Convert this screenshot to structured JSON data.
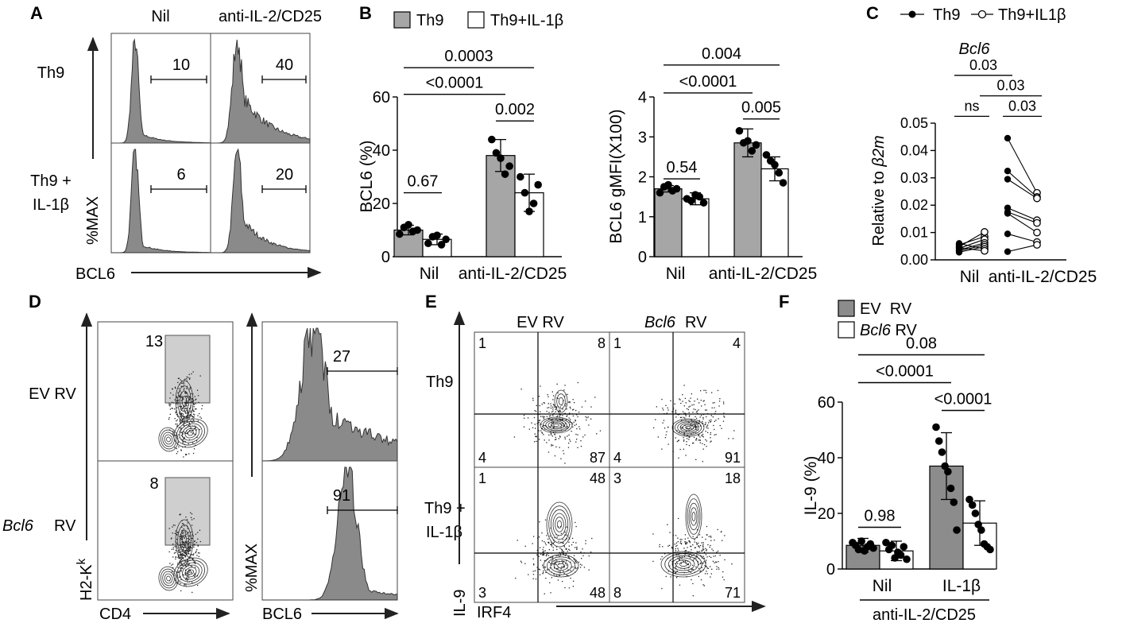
{
  "panel_labels": {
    "a": "A",
    "b": "B",
    "c": "C",
    "d": "D",
    "e": "E",
    "f": "F"
  },
  "panel_a": {
    "col_headers": [
      "Nil",
      "anti-IL-2/CD25"
    ],
    "row_labels": [
      "Th9",
      "Th9 +",
      "IL-1β"
    ],
    "y_label": "%MAX",
    "x_label": "BCL6",
    "gate_values": [
      "10",
      "40",
      "6",
      "20"
    ]
  },
  "legend_b": {
    "items": [
      "Th9",
      "Th9+IL-1β"
    ],
    "colors": [
      "#a6a6a6",
      "#ffffff"
    ]
  },
  "legend_c": {
    "items": [
      "Th9",
      "Th9+IL1β"
    ]
  },
  "title_c": "Bcl6",
  "ylabel_c_prefix": "Relative to ",
  "ylabel_c_gene": "β2m",
  "legend_f": {
    "items": [
      "EV  RV",
      "Bcl6 RV"
    ],
    "item2_gene": "Bcl6",
    "item2_rest": " RV"
  },
  "panel_d": {
    "row_labels": [
      "EV RV",
      "Bcl6",
      "RV"
    ],
    "dot_y_label": "H2-K",
    "dot_y_sup": "k",
    "dot_x_label": "CD4",
    "hist_y_label": "%MAX",
    "hist_x_label": "BCL6",
    "gate_values": [
      "13",
      "8"
    ],
    "hist_values": [
      "27",
      "91"
    ]
  },
  "panel_e": {
    "col_headers": [
      "EV RV",
      "Bcl6",
      "RV"
    ],
    "row_labels": [
      "Th9",
      "Th9 +",
      "IL-1β"
    ],
    "y_label": "IL-9",
    "x_label": "IRF4",
    "quadrants": [
      {
        "ul": "1",
        "ur": "8",
        "ll": "4",
        "lr": "87"
      },
      {
        "ul": "1",
        "ur": "4",
        "ll": "4",
        "lr": "91"
      },
      {
        "ul": "1",
        "ur": "48",
        "ll": "3",
        "lr": "48"
      },
      {
        "ul": "3",
        "ur": "18",
        "ll": "8",
        "lr": "71"
      }
    ]
  },
  "chart_data": [
    {
      "type": "bar",
      "id": "B1",
      "ylabel": "BCL6 (%)",
      "categories": [
        "Nil",
        "anti-IL-2/CD25"
      ],
      "ylim": [
        0,
        60
      ],
      "yticks": [
        "0",
        "20",
        "40",
        "60"
      ],
      "series": [
        {
          "name": "Th9",
          "values": [
            10,
            38
          ],
          "err": [
            1.8,
            6
          ],
          "points": [
            [
              8.5,
              11,
              12,
              9.5,
              10
            ],
            [
              44,
              39,
              37,
              31,
              34
            ]
          ]
        },
        {
          "name": "Th9+IL-1β",
          "values": [
            6.5,
            24
          ],
          "err": [
            2,
            7
          ],
          "points": [
            [
              5,
              7.5,
              8,
              4.5,
              6.5
            ],
            [
              30,
              24,
              17,
              20,
              27
            ]
          ]
        }
      ],
      "annotations": [
        {
          "text": "0.67",
          "from": [
            0,
            0
          ],
          "to": [
            0,
            1
          ],
          "y": 24
        },
        {
          "text": "0.002",
          "from": [
            1,
            0
          ],
          "to": [
            1,
            1
          ],
          "y": 51
        },
        {
          "text": "<0.0001",
          "from": [
            0,
            0
          ],
          "to": [
            1,
            0
          ],
          "y": 61
        },
        {
          "text": "0.0003",
          "from": [
            0,
            0
          ],
          "to": [
            1,
            1
          ],
          "y": 71
        }
      ]
    },
    {
      "type": "bar",
      "id": "B2",
      "ylabel": "BCL6 gMFI(X100)",
      "categories": [
        "Nil",
        "anti-IL-2/CD25"
      ],
      "ylim": [
        0,
        4
      ],
      "yticks": [
        "0",
        "1",
        "2",
        "3",
        "4"
      ],
      "series": [
        {
          "name": "Th9",
          "values": [
            1.7,
            2.85
          ],
          "err": [
            0.08,
            0.35
          ],
          "points": [
            [
              1.6,
              1.75,
              1.8,
              1.65,
              1.7
            ],
            [
              3.15,
              2.85,
              2.9,
              2.65,
              2.8
            ]
          ]
        },
        {
          "name": "Th9+IL-1β",
          "values": [
            1.45,
            2.2
          ],
          "err": [
            0.15,
            0.3
          ],
          "points": [
            [
              1.45,
              1.4,
              1.55,
              1.5,
              1.35
            ],
            [
              2.55,
              2.4,
              2.3,
              2.1,
              1.85
            ]
          ]
        }
      ],
      "annotations": [
        {
          "text": "0.54",
          "from": [
            0,
            0
          ],
          "to": [
            0,
            1
          ],
          "y": 1.95
        },
        {
          "text": "0.005",
          "from": [
            1,
            0
          ],
          "to": [
            1,
            1
          ],
          "y": 3.45
        },
        {
          "text": "<0.0001",
          "from": [
            0,
            0
          ],
          "to": [
            1,
            0
          ],
          "y": 4.1
        },
        {
          "text": "0.004",
          "from": [
            0,
            0
          ],
          "to": [
            1,
            1
          ],
          "y": 4.8
        }
      ]
    },
    {
      "type": "scatter",
      "id": "C",
      "ylabel": "Relative to β2m",
      "categories": [
        "Nil",
        "anti-IL-2/CD25"
      ],
      "ylim": [
        0,
        0.05
      ],
      "yticks": [
        "0.00",
        "0.01",
        "0.02",
        "0.03",
        "0.04",
        "0.05"
      ],
      "pairs": [
        [
          [
            0.0055,
            0.0085
          ],
          [
            0.0048,
            0.0102
          ],
          [
            0.0042,
            0.0075
          ],
          [
            0.0036,
            0.0062
          ],
          [
            0.0032,
            0.0055
          ],
          [
            0.0028,
            0.0048
          ],
          [
            0.006,
            0.004
          ],
          [
            0.0045,
            0.0033
          ]
        ],
        [
          [
            0.0445,
            0.0245
          ],
          [
            0.0325,
            0.023
          ],
          [
            0.0295,
            0.0225
          ],
          [
            0.019,
            0.0145
          ],
          [
            0.0175,
            0.0135
          ],
          [
            0.017,
            0.01
          ],
          [
            0.0095,
            0.0065
          ],
          [
            0.003,
            0.0055
          ]
        ]
      ],
      "annotations": [
        {
          "text": "ns",
          "from": [
            0,
            0
          ],
          "to": [
            0,
            1
          ],
          "y": 0.0525
        },
        {
          "text": "0.03",
          "from": [
            1,
            0
          ],
          "to": [
            1,
            1
          ],
          "y": 0.0525
        },
        {
          "text": "0.03",
          "from": [
            0,
            1
          ],
          "to": [
            1,
            1
          ],
          "y": 0.06
        },
        {
          "text": "0.03",
          "from": [
            0,
            0
          ],
          "to": [
            1,
            0
          ],
          "y": 0.0675
        }
      ]
    },
    {
      "type": "bar",
      "id": "F",
      "ylabel": "IL-9 (%)",
      "categories": [
        "Nil",
        "IL-1β"
      ],
      "group_label": "anti-IL-2/CD25",
      "ylim": [
        0,
        60
      ],
      "yticks": [
        "0",
        "20",
        "40",
        "60"
      ],
      "series": [
        {
          "name": "EV RV",
          "values": [
            8.5,
            37
          ],
          "err": [
            2.5,
            12
          ],
          "points": [
            [
              9.5,
              8.5,
              7,
              10,
              6.5,
              8,
              9,
              7.5
            ],
            [
              51,
              46,
              42,
              37,
              35,
              29,
              24,
              14
            ]
          ]
        },
        {
          "name": "Bcl6 RV",
          "values": [
            6.5,
            16.5
          ],
          "err": [
            3.5,
            8
          ],
          "points": [
            [
              9.5,
              7,
              8.5,
              4,
              6,
              5,
              8,
              3.5
            ],
            [
              25,
              23,
              20,
              16,
              14,
              9,
              8,
              7
            ]
          ]
        }
      ],
      "annotations": [
        {
          "text": "0.98",
          "from": [
            0,
            0
          ],
          "to": [
            0,
            1
          ],
          "y": 15
        },
        {
          "text": "<0.0001",
          "from": [
            1,
            0
          ],
          "to": [
            1,
            1
          ],
          "y": 57
        },
        {
          "text": "<0.0001",
          "from": [
            0,
            0
          ],
          "to": [
            1,
            0
          ],
          "y": 67
        },
        {
          "text": "0.08",
          "from": [
            0,
            0
          ],
          "to": [
            1,
            1
          ],
          "y": 77
        }
      ]
    }
  ]
}
